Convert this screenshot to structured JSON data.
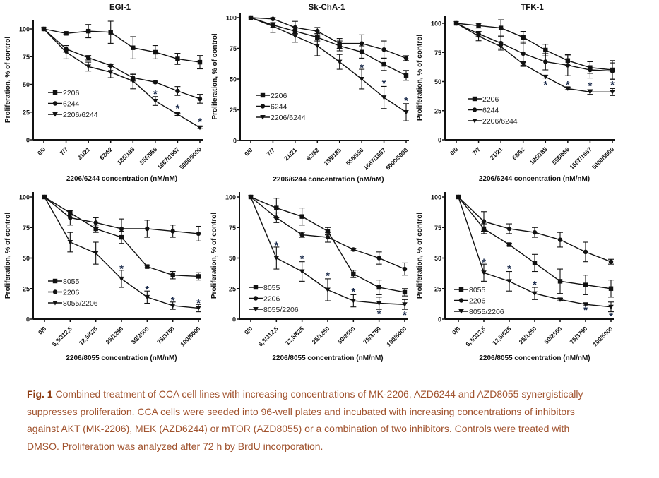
{
  "chart_data": [
    {
      "type": "line",
      "title": "EGI-1",
      "xlabel": "2206/6244 concentration (nM/nM)",
      "ylabel": "Proliferation, % of control",
      "ylim": [
        0,
        100
      ],
      "yticks": [
        0,
        25,
        50,
        75,
        100
      ],
      "legend": "bottom-left",
      "categories": [
        "0/0",
        "7/7",
        "21/21",
        "62/62",
        "185/185",
        "556/556",
        "1667/1667",
        "5000/5000"
      ],
      "series": [
        {
          "name": "2206",
          "marker": "square",
          "values": [
            100,
            96,
            98,
            97,
            83,
            79,
            73,
            70
          ],
          "errors": [
            0,
            1,
            6,
            10,
            10,
            6,
            5,
            6
          ]
        },
        {
          "name": "6244",
          "marker": "circle",
          "values": [
            100,
            82,
            74,
            67,
            56,
            52,
            44,
            37
          ],
          "errors": [
            0,
            3,
            2,
            1,
            3,
            1,
            4,
            4
          ]
        },
        {
          "name": "2206/6244",
          "marker": "triangle-down",
          "values": [
            100,
            79,
            66,
            61,
            53,
            35,
            23,
            11
          ],
          "errors": [
            0,
            6,
            4,
            5,
            7,
            4,
            1,
            1
          ]
        }
      ],
      "annotations": [
        {
          "index": 5,
          "y": 42,
          "text": "*"
        },
        {
          "index": 6,
          "y": 29,
          "text": "*"
        },
        {
          "index": 7,
          "y": 17,
          "text": "*"
        }
      ]
    },
    {
      "type": "line",
      "title": "Sk-ChA-1",
      "xlabel": "2206/6244 concentration (nM/nM)",
      "ylabel": "Proliferation, % of control",
      "ylim": [
        0,
        100
      ],
      "yticks": [
        0,
        25,
        50,
        75,
        100
      ],
      "legend": "bottom-left",
      "categories": [
        "0/0",
        "7/7",
        "21/21",
        "62/62",
        "185/185",
        "556/556",
        "1667/1667",
        "5000/5000"
      ],
      "series": [
        {
          "name": "2206",
          "marker": "square",
          "values": [
            100,
            94,
            89,
            84,
            77,
            72,
            62,
            53
          ],
          "errors": [
            0,
            2,
            3,
            3,
            4,
            5,
            5,
            4
          ]
        },
        {
          "name": "6244",
          "marker": "circle",
          "values": [
            100,
            99,
            92,
            89,
            79,
            79,
            74,
            67
          ],
          "errors": [
            0,
            1,
            5,
            3,
            4,
            7,
            7,
            2
          ]
        },
        {
          "name": "2206/6244",
          "marker": "triangle-down",
          "values": [
            100,
            93,
            85,
            77,
            64,
            50,
            35,
            23
          ],
          "errors": [
            0,
            5,
            5,
            8,
            6,
            8,
            9,
            7
          ]
        }
      ],
      "annotations": [
        {
          "index": 5,
          "y": 60,
          "text": "*"
        },
        {
          "index": 6,
          "y": 47,
          "text": "*"
        },
        {
          "index": 7,
          "y": 33,
          "text": "*"
        }
      ]
    },
    {
      "type": "line",
      "title": "TFK-1",
      "xlabel": "2206/6244 concentration (nM/nM)",
      "ylabel": "Proliferation, % of control",
      "ylim": [
        0,
        100
      ],
      "yticks": [
        0,
        25,
        50,
        75,
        100
      ],
      "legend": "bottom-left",
      "categories": [
        "0/0",
        "7/7",
        "21/21",
        "62/62",
        "185/185",
        "556/556",
        "1667/1667",
        "5000/5000"
      ],
      "series": [
        {
          "name": "2206",
          "marker": "square",
          "values": [
            100,
            98,
            96,
            88,
            77,
            68,
            62,
            60
          ],
          "errors": [
            0,
            2,
            7,
            5,
            5,
            4,
            5,
            8
          ]
        },
        {
          "name": "6244",
          "marker": "circle",
          "values": [
            100,
            91,
            83,
            74,
            67,
            64,
            60,
            59
          ],
          "errors": [
            0,
            2,
            6,
            10,
            7,
            9,
            7,
            7
          ]
        },
        {
          "name": "2206/6244",
          "marker": "triangle-down",
          "values": [
            100,
            89,
            80,
            65,
            54,
            44,
            41,
            41
          ],
          "errors": [
            0,
            4,
            2,
            2,
            1,
            1,
            2,
            3
          ]
        }
      ],
      "annotations": [
        {
          "index": 4,
          "y": 48,
          "text": "*"
        },
        {
          "index": 5,
          "y": 48,
          "text": "*"
        },
        {
          "index": 6,
          "y": 47,
          "text": "*"
        },
        {
          "index": 7,
          "y": 48,
          "text": "*"
        }
      ]
    },
    {
      "type": "line",
      "title": "",
      "xlabel": "2206/8055 concentration (nM/nM)",
      "ylabel": "Proliferation, % of control",
      "ylim": [
        0,
        100
      ],
      "yticks": [
        0,
        25,
        50,
        75,
        100
      ],
      "legend": "bottom-left",
      "categories": [
        "0/0",
        "6,3/312,5",
        "12,5/625",
        "25/1250",
        "50/2500",
        "75/3750",
        "100/5000"
      ],
      "series": [
        {
          "name": "8055",
          "marker": "square",
          "values": [
            100,
            87,
            74,
            67,
            43,
            36,
            35
          ],
          "errors": [
            0,
            2,
            3,
            5,
            1,
            3,
            3
          ]
        },
        {
          "name": "2206",
          "marker": "circle",
          "values": [
            100,
            83,
            79,
            74,
            74,
            72,
            70
          ],
          "errors": [
            0,
            6,
            4,
            8,
            7,
            5,
            6
          ]
        },
        {
          "name": "8055/2206",
          "marker": "triangle-down",
          "values": [
            100,
            63,
            54,
            33,
            18,
            11,
            9
          ],
          "errors": [
            0,
            8,
            9,
            7,
            5,
            3,
            3
          ]
        }
      ],
      "annotations": [
        {
          "index": 3,
          "y": 42,
          "text": "*"
        },
        {
          "index": 4,
          "y": 25,
          "text": "*"
        },
        {
          "index": 5,
          "y": 16,
          "text": "*"
        },
        {
          "index": 6,
          "y": 14,
          "text": "*"
        }
      ]
    },
    {
      "type": "line",
      "title": "",
      "xlabel": "2206/8055 concentration (nM/nM)",
      "ylabel": "Proliferation, % of control",
      "ylim": [
        0,
        100
      ],
      "yticks": [
        0,
        25,
        50,
        75,
        100
      ],
      "legend": "bottom-left",
      "categories": [
        "0/0",
        "6,3/312,5",
        "12,5/625",
        "25/1250",
        "50/2500",
        "75/3750",
        "100/5000"
      ],
      "series": [
        {
          "name": "8055",
          "marker": "square",
          "values": [
            100,
            91,
            84,
            72,
            37,
            26,
            22
          ],
          "errors": [
            0,
            8,
            7,
            3,
            3,
            6,
            3
          ]
        },
        {
          "name": "2206",
          "marker": "circle",
          "values": [
            100,
            83,
            69,
            67,
            57,
            50,
            41
          ],
          "errors": [
            0,
            4,
            2,
            4,
            1,
            5,
            5
          ]
        },
        {
          "name": "8055/2206",
          "marker": "triangle-down",
          "values": [
            100,
            50,
            39,
            24,
            15,
            13,
            12
          ],
          "errors": [
            0,
            9,
            8,
            9,
            5,
            5,
            4
          ]
        }
      ],
      "annotations": [
        {
          "index": 1,
          "y": 61,
          "text": "*"
        },
        {
          "index": 2,
          "y": 50,
          "text": "*"
        },
        {
          "index": 3,
          "y": 36,
          "text": "*"
        },
        {
          "index": 4,
          "y": 23,
          "text": "*"
        },
        {
          "index": 5,
          "y": 5,
          "text": "*"
        },
        {
          "index": 6,
          "y": 4,
          "text": "*"
        }
      ]
    },
    {
      "type": "line",
      "title": "",
      "xlabel": "2206/8055 concentration (nM/nM)",
      "ylabel": "Proliferation, % of control",
      "ylim": [
        0,
        100
      ],
      "yticks": [
        0,
        25,
        50,
        75,
        100
      ],
      "legend": "bottom-left",
      "categories": [
        "0/0",
        "6,3/312,5",
        "12,5/625",
        "25/1250",
        "50/2500",
        "75/3750",
        "100/5000"
      ],
      "series": [
        {
          "name": "8055",
          "marker": "square",
          "values": [
            100,
            74,
            61,
            46,
            31,
            28,
            25
          ],
          "errors": [
            0,
            4,
            1,
            7,
            10,
            8,
            7
          ]
        },
        {
          "name": "2206",
          "marker": "circle",
          "values": [
            100,
            80,
            74,
            71,
            65,
            55,
            47
          ],
          "errors": [
            0,
            8,
            4,
            4,
            6,
            8,
            2
          ]
        },
        {
          "name": "8055/2206",
          "marker": "triangle-down",
          "values": [
            100,
            38,
            31,
            21,
            16,
            12,
            10
          ],
          "errors": [
            0,
            7,
            8,
            5,
            1,
            1,
            4
          ]
        }
      ],
      "annotations": [
        {
          "index": 1,
          "y": 47,
          "text": "*"
        },
        {
          "index": 2,
          "y": 42,
          "text": "*"
        },
        {
          "index": 3,
          "y": 29,
          "text": "*"
        },
        {
          "index": 5,
          "y": 8,
          "text": "*"
        },
        {
          "index": 6,
          "y": 3,
          "text": "*"
        }
      ]
    }
  ],
  "caption": {
    "label": "Fig. 1",
    "lines": [
      " Combined treatment of CCA cell lines with increasing concentrations of MK-2206, AZD6244 and AZD8055 synergistically",
      "suppresses proliferation. CCA cells were seeded into 96-well plates and incubated with increasing concentrations of inhibitors",
      "against AKT (MK-2206), MEK (AZD6244) or mTOR (AZD8055) or a combination of two inhibitors. Controls were treated with",
      "DMSO. Proliferation was analyzed after 72 h by BrdU incorporation."
    ]
  },
  "colors": {
    "ink": "#111111",
    "caption": "#a0522d",
    "caption_label": "#8b3a0f",
    "asterisk": "#1a2a4a"
  }
}
